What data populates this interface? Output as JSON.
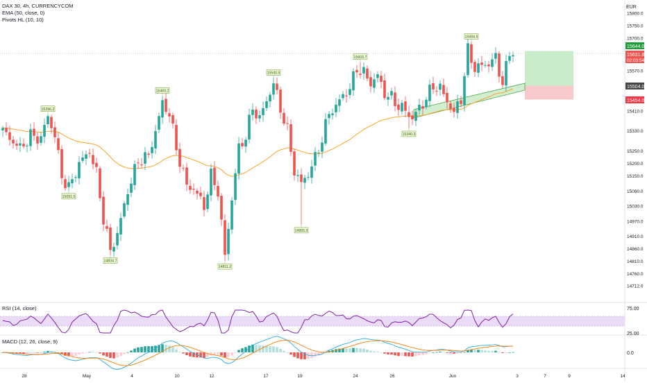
{
  "legend": {
    "symbol_line": "DAX 30, 4h, CURRENCYCOM",
    "ema_line": "EMA (50, close, 0)",
    "pivots_line": "Pivots HL (10, 10)",
    "rsi_line": "RSI (14, close)",
    "macd_line": "MACD (12, 26, close, 9)"
  },
  "currency": "EUR",
  "price_axis": {
    "ticks": [
      "15800.0",
      "15750.0",
      "15700.0",
      "15570.0",
      "15410.0",
      "15330.0",
      "15250.0",
      "15200.0",
      "15150.0",
      "15090.0",
      "15030.0",
      "14970.0",
      "14910.0",
      "14860.0",
      "14810.0",
      "14760.0",
      "14712.0"
    ],
    "hidden_ticks": [
      "15630.0",
      "15490.0"
    ]
  },
  "price_badges": {
    "target": "15644.0",
    "current_price": "15631.8",
    "countdown": "02:03:54",
    "entry": "15504.0",
    "stop": "15454.0"
  },
  "pivot_labels": [
    {
      "text": "15396.2",
      "high": true
    },
    {
      "text": "15091.5",
      "high": false
    },
    {
      "text": "14834.7",
      "high": false
    },
    {
      "text": "15469.2",
      "high": true
    },
    {
      "text": "14811.2",
      "high": false
    },
    {
      "text": "15540.5",
      "high": true
    },
    {
      "text": "14955.9",
      "high": false
    },
    {
      "text": "15603.7",
      "high": true
    },
    {
      "text": "15340.3",
      "high": false
    },
    {
      "text": "15684.9",
      "high": true
    }
  ],
  "time_axis": [
    "28",
    "May",
    "4",
    "10",
    "12",
    "17",
    "19",
    "24",
    "26",
    "Jun",
    "3",
    "7",
    "9",
    "14"
  ],
  "rsi_axis": [
    "75.00",
    "25.00"
  ],
  "macd_axis": [
    "0.0"
  ],
  "colors": {
    "up": "#26a69a",
    "down": "#ef5350",
    "ema": "#f7a52b",
    "rsi": "#7e1fa3",
    "rsi_band": "#eadcf7",
    "macd": "#2ca6e0",
    "signal": "#f57c00",
    "hist_pos_strong": "#26a69a",
    "hist_pos_weak": "#b2dfdb",
    "hist_neg_strong": "#ef5350",
    "hist_neg_weak": "#ffcdd2",
    "long_target": "#c8ecc9",
    "long_stop": "#f8c9cb",
    "channel": "#9ed69a"
  },
  "chart_data": [
    {
      "type": "candlestick",
      "title": "DAX 30, 4h, CURRENCYCOM",
      "ylabel": "EUR",
      "ylim": [
        14712,
        15830
      ],
      "anchors": [
        {
          "i": 0,
          "close": 15330
        },
        {
          "i": 2,
          "close": 15300
        },
        {
          "i": 5,
          "close": 15260
        },
        {
          "i": 8,
          "close": 15310
        },
        {
          "i": 11,
          "close": 15300
        },
        {
          "i": 13,
          "close": 15390
        },
        {
          "i": 15,
          "close": 15310
        },
        {
          "i": 17,
          "close": 15150
        },
        {
          "i": 19,
          "close": 15100
        },
        {
          "i": 22,
          "close": 15200
        },
        {
          "i": 25,
          "close": 15250
        },
        {
          "i": 27,
          "close": 15160
        },
        {
          "i": 29,
          "close": 14980
        },
        {
          "i": 31,
          "close": 14850
        },
        {
          "i": 33,
          "close": 14920
        },
        {
          "i": 36,
          "close": 15090
        },
        {
          "i": 39,
          "close": 15210
        },
        {
          "i": 42,
          "close": 15230
        },
        {
          "i": 44,
          "close": 15330
        },
        {
          "i": 46,
          "close": 15440
        },
        {
          "i": 48,
          "close": 15400
        },
        {
          "i": 50,
          "close": 15260
        },
        {
          "i": 53,
          "close": 15110
        },
        {
          "i": 55,
          "close": 15100
        },
        {
          "i": 58,
          "close": 15030
        },
        {
          "i": 60,
          "close": 15150
        },
        {
          "i": 62,
          "close": 15090
        },
        {
          "i": 64,
          "close": 14830
        },
        {
          "i": 66,
          "close": 15060
        },
        {
          "i": 68,
          "close": 15260
        },
        {
          "i": 70,
          "close": 15310
        },
        {
          "i": 72,
          "close": 15420
        },
        {
          "i": 74,
          "close": 15380
        },
        {
          "i": 76,
          "close": 15450
        },
        {
          "i": 78,
          "close": 15520
        },
        {
          "i": 80,
          "close": 15420
        },
        {
          "i": 82,
          "close": 15330
        },
        {
          "i": 84,
          "close": 15170
        },
        {
          "i": 86,
          "close": 15120
        },
        {
          "i": 88,
          "close": 15160
        },
        {
          "i": 90,
          "close": 15220
        },
        {
          "i": 92,
          "close": 15300
        },
        {
          "i": 94,
          "close": 15400
        },
        {
          "i": 96,
          "close": 15430
        },
        {
          "i": 98,
          "close": 15470
        },
        {
          "i": 100,
          "close": 15500
        },
        {
          "i": 102,
          "close": 15580
        },
        {
          "i": 104,
          "close": 15560
        },
        {
          "i": 106,
          "close": 15520
        },
        {
          "i": 108,
          "close": 15550
        },
        {
          "i": 110,
          "close": 15480
        },
        {
          "i": 112,
          "close": 15460
        },
        {
          "i": 114,
          "close": 15430
        },
        {
          "i": 116,
          "close": 15410
        },
        {
          "i": 118,
          "close": 15380
        },
        {
          "i": 120,
          "close": 15420
        },
        {
          "i": 122,
          "close": 15460
        },
        {
          "i": 124,
          "close": 15510
        },
        {
          "i": 126,
          "close": 15500
        },
        {
          "i": 128,
          "close": 15450
        },
        {
          "i": 130,
          "close": 15400
        },
        {
          "i": 132,
          "close": 15460
        },
        {
          "i": 134,
          "close": 15650
        },
        {
          "i": 136,
          "close": 15580
        },
        {
          "i": 138,
          "close": 15590
        },
        {
          "i": 140,
          "close": 15600
        },
        {
          "i": 142,
          "close": 15620
        },
        {
          "i": 144,
          "close": 15520
        },
        {
          "i": 146,
          "close": 15640
        },
        {
          "i": 147,
          "close": 15632
        }
      ],
      "pivots": [
        {
          "label": "15396.2",
          "index": 13,
          "price": 15396.2,
          "kind": "high"
        },
        {
          "label": "15091.5",
          "index": 19,
          "price": 15091.5,
          "kind": "low"
        },
        {
          "label": "14834.7",
          "index": 31,
          "price": 14834.7,
          "kind": "low"
        },
        {
          "label": "15469.2",
          "index": 46,
          "price": 15469.2,
          "kind": "high"
        },
        {
          "label": "14811.2",
          "index": 64,
          "price": 14811.2,
          "kind": "low"
        },
        {
          "label": "15540.5",
          "index": 78,
          "price": 15540.5,
          "kind": "high"
        },
        {
          "label": "14955.9",
          "index": 86,
          "price": 14955.9,
          "kind": "low"
        },
        {
          "label": "15603.7",
          "index": 103,
          "price": 15603.7,
          "kind": "high"
        },
        {
          "label": "15340.3",
          "index": 117,
          "price": 15340.3,
          "kind": "low"
        },
        {
          "label": "15684.9",
          "index": 135,
          "price": 15684.9,
          "kind": "high"
        }
      ],
      "position": {
        "type": "long",
        "entry": 15504.0,
        "target": 15644.0,
        "stop": 15454.0
      },
      "ema_period": 50,
      "x_ticks": [
        "28",
        "May",
        "4",
        "10",
        "12",
        "17",
        "19",
        "24",
        "26",
        "Jun",
        "3",
        "7",
        "9",
        "14"
      ]
    },
    {
      "type": "line",
      "title": "RSI (14, close)",
      "ylim": [
        0,
        100
      ],
      "bands": [
        25,
        75
      ],
      "ticks": [
        "75.00",
        "25.00"
      ]
    },
    {
      "type": "bar",
      "title": "MACD (12, 26, close, 9)",
      "ticks": [
        "0.0"
      ],
      "series": [
        {
          "name": "histogram"
        },
        {
          "name": "macd"
        },
        {
          "name": "signal"
        }
      ]
    }
  ]
}
